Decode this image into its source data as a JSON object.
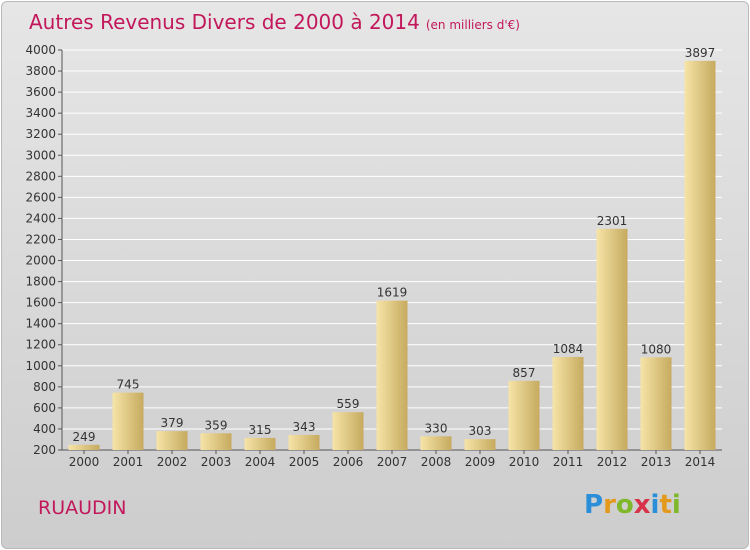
{
  "header": {
    "title": "Autres Revenus Divers de 2000 à 2014",
    "unit": "(en milliers d'€)"
  },
  "footer": {
    "city": "RUAUDIN",
    "logo_text": "Proxiti"
  },
  "colors": {
    "title": "#c2185b",
    "bar_light": "#f3dfa0",
    "bar_dark": "#c9ad62",
    "grid": "#ffffff"
  },
  "chart_data": {
    "type": "bar",
    "title": "Autres Revenus Divers de 2000 à 2014",
    "xlabel": "",
    "ylabel": "",
    "categories": [
      "2000",
      "2001",
      "2002",
      "2003",
      "2004",
      "2005",
      "2006",
      "2007",
      "2008",
      "2009",
      "2010",
      "2011",
      "2012",
      "2013",
      "2014"
    ],
    "values": [
      249,
      745,
      379,
      359,
      315,
      343,
      559,
      1619,
      330,
      303,
      857,
      1084,
      2301,
      1080,
      3897
    ],
    "ylim": [
      200,
      4000
    ],
    "yticks": [
      200,
      400,
      600,
      800,
      1000,
      1200,
      1400,
      1600,
      1800,
      2000,
      2200,
      2400,
      2600,
      2800,
      3000,
      3200,
      3400,
      3600,
      3800,
      4000
    ],
    "grid": true,
    "legend": "none"
  }
}
